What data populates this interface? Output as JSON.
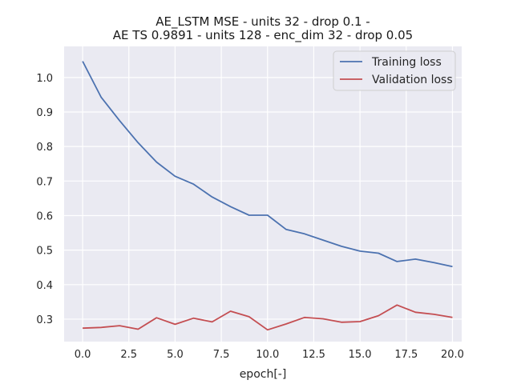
{
  "chart_data": {
    "type": "line",
    "title_line1": "AE_LSTM MSE - units 32 - drop 0.1 -",
    "title_line2": "AE TS 0.9891 - units 128 - enc_dim 32 - drop 0.05",
    "xlabel": "epoch[-]",
    "ylabel": "",
    "xlim": [
      -1,
      20.5
    ],
    "ylim": [
      0.235,
      1.09
    ],
    "xticks": [
      0.0,
      2.5,
      5.0,
      7.5,
      10.0,
      12.5,
      15.0,
      17.5,
      20.0
    ],
    "xtick_labels": [
      "0.0",
      "2.5",
      "5.0",
      "7.5",
      "10.0",
      "12.5",
      "15.0",
      "17.5",
      "20.0"
    ],
    "yticks": [
      0.3,
      0.4,
      0.5,
      0.6,
      0.7,
      0.8,
      0.9,
      1.0
    ],
    "ytick_labels": [
      "0.3",
      "0.4",
      "0.5",
      "0.6",
      "0.7",
      "0.8",
      "0.9",
      "1.0"
    ],
    "grid": true,
    "legend_position": "top-right",
    "x": [
      0,
      1,
      2,
      3,
      4,
      5,
      6,
      7,
      8,
      9,
      10,
      11,
      12,
      13,
      14,
      15,
      16,
      17,
      18,
      19,
      20
    ],
    "series": [
      {
        "name": "Training loss",
        "color": "#4c72b0",
        "values": [
          1.047,
          0.943,
          0.875,
          0.811,
          0.755,
          0.714,
          0.691,
          0.654,
          0.626,
          0.601,
          0.601,
          0.56,
          0.547,
          0.529,
          0.511,
          0.497,
          0.491,
          0.467,
          0.474,
          0.464,
          0.452
        ]
      },
      {
        "name": "Validation loss",
        "color": "#c44e52",
        "values": [
          0.274,
          0.276,
          0.281,
          0.271,
          0.304,
          0.285,
          0.303,
          0.292,
          0.323,
          0.307,
          0.269,
          0.286,
          0.305,
          0.301,
          0.291,
          0.293,
          0.31,
          0.341,
          0.32,
          0.314,
          0.305
        ]
      }
    ]
  }
}
